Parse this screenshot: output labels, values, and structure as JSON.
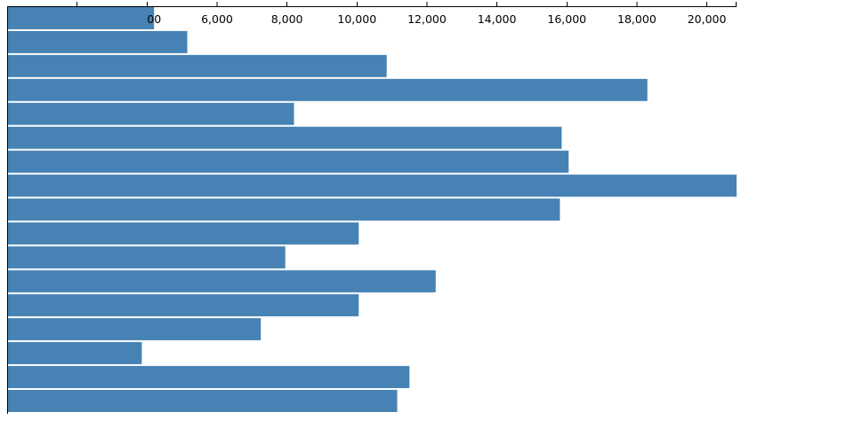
{
  "colors": {
    "bar": "#4682b4",
    "axis": "#000000",
    "background": "#ffffff"
  },
  "chart_data": {
    "type": "bar",
    "orientation": "horizontal",
    "title": "",
    "xlabel": "",
    "ylabel": "",
    "xlim": [
      0,
      20850
    ],
    "x_ticks": [
      2000,
      4000,
      6000,
      8000,
      10000,
      12000,
      14000,
      16000,
      18000,
      20000
    ],
    "x_tick_labels": [
      "",
      "",
      "6,000",
      "8,000",
      "10,000",
      "12,000",
      "14,000",
      "16,000",
      "18,000",
      "20,000"
    ],
    "partial_tick_label": "00",
    "axis_position": "top",
    "grid": false,
    "legend": "none",
    "values": [
      4200,
      5150,
      10850,
      18300,
      8200,
      15850,
      16050,
      20850,
      15800,
      10050,
      7950,
      12250,
      10050,
      7250,
      3850,
      11500,
      11150
    ]
  }
}
